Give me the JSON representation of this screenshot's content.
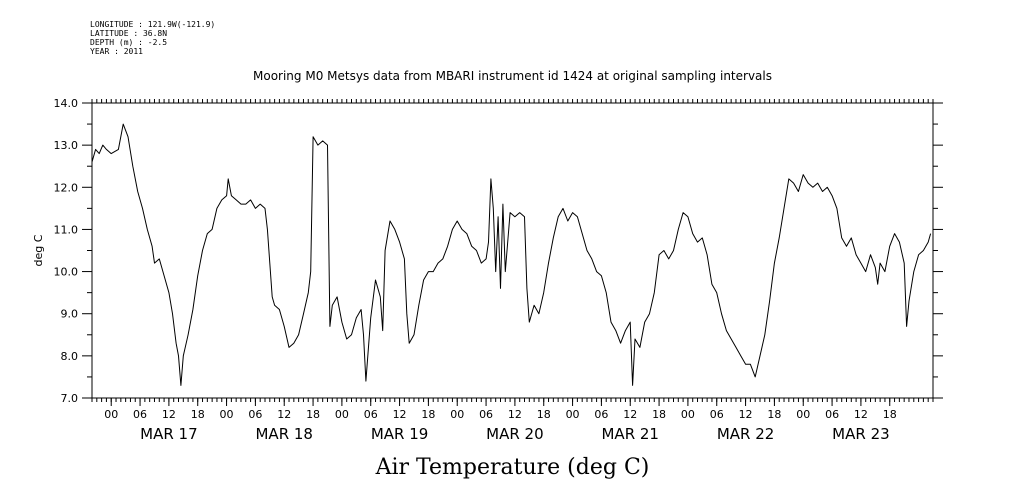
{
  "meta": {
    "longitude": "LONGITUDE : 121.9W(-121.9)",
    "latitude": "LATITUDE : 36.8N",
    "depth": "DEPTH (m) : -2.5",
    "year": "YEAR : 2011"
  },
  "chart_data": {
    "type": "line",
    "title": "Mooring M0 Metsys data from MBARI instrument id 1424 at original sampling intervals",
    "xlabel": "Air Temperature (deg C)",
    "ylabel": "deg C",
    "ylim": [
      7.0,
      14.0
    ],
    "yticks": [
      "7.0",
      "8.0",
      "9.0",
      "10.0",
      "11.0",
      "12.0",
      "13.0",
      "14.0"
    ],
    "xlim": [
      "2011-03-16T20:00",
      "2011-03-24T03:00"
    ],
    "hour_ticks": [
      "00",
      "06",
      "12",
      "18",
      "00",
      "06",
      "12",
      "18",
      "00",
      "06",
      "12",
      "18",
      "00",
      "06",
      "12",
      "18",
      "00",
      "06",
      "12",
      "18",
      "00",
      "06",
      "12",
      "18",
      "00",
      "06",
      "12",
      "18"
    ],
    "day_labels": [
      "MAR 17",
      "MAR 18",
      "MAR 19",
      "MAR 20",
      "MAR 21",
      "MAR 22",
      "MAR 23"
    ],
    "series": [
      {
        "values": [
          [
            "2011-03-16T20:00",
            12.6
          ],
          [
            "2011-03-16T20:45",
            12.9
          ],
          [
            "2011-03-16T21:30",
            12.8
          ],
          [
            "2011-03-16T22:15",
            13.0
          ],
          [
            "2011-03-16T23:00",
            12.9
          ],
          [
            "2011-03-17T00:00",
            12.8
          ],
          [
            "2011-03-17T01:30",
            12.9
          ],
          [
            "2011-03-17T02:30",
            13.5
          ],
          [
            "2011-03-17T03:30",
            13.2
          ],
          [
            "2011-03-17T04:30",
            12.5
          ],
          [
            "2011-03-17T05:30",
            11.9
          ],
          [
            "2011-03-17T06:30",
            11.5
          ],
          [
            "2011-03-17T07:30",
            11.0
          ],
          [
            "2011-03-17T08:30",
            10.6
          ],
          [
            "2011-03-17T09:00",
            10.2
          ],
          [
            "2011-03-17T10:00",
            10.3
          ],
          [
            "2011-03-17T11:00",
            9.9
          ],
          [
            "2011-03-17T12:00",
            9.5
          ],
          [
            "2011-03-17T12:45",
            9.0
          ],
          [
            "2011-03-17T13:30",
            8.3
          ],
          [
            "2011-03-17T14:00",
            8.0
          ],
          [
            "2011-03-17T14:30",
            7.3
          ],
          [
            "2011-03-17T15:00",
            8.0
          ],
          [
            "2011-03-17T16:00",
            8.5
          ],
          [
            "2011-03-17T17:00",
            9.1
          ],
          [
            "2011-03-17T18:00",
            9.9
          ],
          [
            "2011-03-17T19:00",
            10.5
          ],
          [
            "2011-03-17T20:00",
            10.9
          ],
          [
            "2011-03-17T21:00",
            11.0
          ],
          [
            "2011-03-17T22:00",
            11.5
          ],
          [
            "2011-03-17T23:00",
            11.7
          ],
          [
            "2011-03-18T00:00",
            11.8
          ],
          [
            "2011-03-18T00:20",
            12.2
          ],
          [
            "2011-03-18T01:00",
            11.8
          ],
          [
            "2011-03-18T02:00",
            11.7
          ],
          [
            "2011-03-18T03:00",
            11.6
          ],
          [
            "2011-03-18T04:00",
            11.6
          ],
          [
            "2011-03-18T05:00",
            11.7
          ],
          [
            "2011-03-18T06:00",
            11.5
          ],
          [
            "2011-03-18T07:00",
            11.6
          ],
          [
            "2011-03-18T08:00",
            11.5
          ],
          [
            "2011-03-18T08:30",
            11.0
          ],
          [
            "2011-03-18T09:00",
            10.2
          ],
          [
            "2011-03-18T09:30",
            9.4
          ],
          [
            "2011-03-18T10:00",
            9.2
          ],
          [
            "2011-03-18T11:00",
            9.1
          ],
          [
            "2011-03-18T12:00",
            8.7
          ],
          [
            "2011-03-18T13:00",
            8.2
          ],
          [
            "2011-03-18T14:00",
            8.3
          ],
          [
            "2011-03-18T15:00",
            8.5
          ],
          [
            "2011-03-18T16:00",
            9.0
          ],
          [
            "2011-03-18T17:00",
            9.5
          ],
          [
            "2011-03-18T17:30",
            10.0
          ],
          [
            "2011-03-18T18:00",
            13.2
          ],
          [
            "2011-03-18T19:00",
            13.0
          ],
          [
            "2011-03-18T20:00",
            13.1
          ],
          [
            "2011-03-18T21:00",
            13.0
          ],
          [
            "2011-03-18T21:30",
            8.7
          ],
          [
            "2011-03-18T22:00",
            9.2
          ],
          [
            "2011-03-18T23:00",
            9.4
          ],
          [
            "2011-03-19T00:00",
            8.8
          ],
          [
            "2011-03-19T01:00",
            8.4
          ],
          [
            "2011-03-19T02:00",
            8.5
          ],
          [
            "2011-03-19T03:00",
            8.9
          ],
          [
            "2011-03-19T04:00",
            9.1
          ],
          [
            "2011-03-19T04:30",
            8.5
          ],
          [
            "2011-03-19T05:00",
            7.4
          ],
          [
            "2011-03-19T06:00",
            8.9
          ],
          [
            "2011-03-19T07:00",
            9.8
          ],
          [
            "2011-03-19T08:00",
            9.4
          ],
          [
            "2011-03-19T08:30",
            8.6
          ],
          [
            "2011-03-19T09:00",
            10.5
          ],
          [
            "2011-03-19T10:00",
            11.2
          ],
          [
            "2011-03-19T11:00",
            11.0
          ],
          [
            "2011-03-19T12:00",
            10.7
          ],
          [
            "2011-03-19T13:00",
            10.3
          ],
          [
            "2011-03-19T13:30",
            9.0
          ],
          [
            "2011-03-19T14:00",
            8.3
          ],
          [
            "2011-03-19T15:00",
            8.5
          ],
          [
            "2011-03-19T16:00",
            9.2
          ],
          [
            "2011-03-19T17:00",
            9.8
          ],
          [
            "2011-03-19T18:00",
            10.0
          ],
          [
            "2011-03-19T19:00",
            10.0
          ],
          [
            "2011-03-19T20:00",
            10.2
          ],
          [
            "2011-03-19T21:00",
            10.3
          ],
          [
            "2011-03-19T22:00",
            10.6
          ],
          [
            "2011-03-19T23:00",
            11.0
          ],
          [
            "2011-03-20T00:00",
            11.2
          ],
          [
            "2011-03-20T01:00",
            11.0
          ],
          [
            "2011-03-20T02:00",
            10.9
          ],
          [
            "2011-03-20T03:00",
            10.6
          ],
          [
            "2011-03-20T04:00",
            10.5
          ],
          [
            "2011-03-20T05:00",
            10.2
          ],
          [
            "2011-03-20T06:00",
            10.3
          ],
          [
            "2011-03-20T06:30",
            10.7
          ],
          [
            "2011-03-20T07:00",
            12.2
          ],
          [
            "2011-03-20T07:30",
            11.5
          ],
          [
            "2011-03-20T08:00",
            10.0
          ],
          [
            "2011-03-20T08:30",
            11.3
          ],
          [
            "2011-03-20T09:00",
            9.6
          ],
          [
            "2011-03-20T09:30",
            11.6
          ],
          [
            "2011-03-20T10:00",
            10.0
          ],
          [
            "2011-03-20T11:00",
            11.4
          ],
          [
            "2011-03-20T12:00",
            11.3
          ],
          [
            "2011-03-20T13:00",
            11.4
          ],
          [
            "2011-03-20T14:00",
            11.3
          ],
          [
            "2011-03-20T14:30",
            9.6
          ],
          [
            "2011-03-20T15:00",
            8.8
          ],
          [
            "2011-03-20T16:00",
            9.2
          ],
          [
            "2011-03-20T17:00",
            9.0
          ],
          [
            "2011-03-20T18:00",
            9.5
          ],
          [
            "2011-03-20T19:00",
            10.2
          ],
          [
            "2011-03-20T20:00",
            10.8
          ],
          [
            "2011-03-20T21:00",
            11.3
          ],
          [
            "2011-03-20T22:00",
            11.5
          ],
          [
            "2011-03-20T23:00",
            11.2
          ],
          [
            "2011-03-21T00:00",
            11.4
          ],
          [
            "2011-03-21T01:00",
            11.3
          ],
          [
            "2011-03-21T02:00",
            10.9
          ],
          [
            "2011-03-21T03:00",
            10.5
          ],
          [
            "2011-03-21T04:00",
            10.3
          ],
          [
            "2011-03-21T05:00",
            10.0
          ],
          [
            "2011-03-21T06:00",
            9.9
          ],
          [
            "2011-03-21T07:00",
            9.5
          ],
          [
            "2011-03-21T08:00",
            8.8
          ],
          [
            "2011-03-21T09:00",
            8.6
          ],
          [
            "2011-03-21T10:00",
            8.3
          ],
          [
            "2011-03-21T11:00",
            8.6
          ],
          [
            "2011-03-21T12:00",
            8.8
          ],
          [
            "2011-03-21T12:30",
            7.3
          ],
          [
            "2011-03-21T13:00",
            8.4
          ],
          [
            "2011-03-21T14:00",
            8.2
          ],
          [
            "2011-03-21T15:00",
            8.8
          ],
          [
            "2011-03-21T16:00",
            9.0
          ],
          [
            "2011-03-21T17:00",
            9.5
          ],
          [
            "2011-03-21T18:00",
            10.4
          ],
          [
            "2011-03-21T19:00",
            10.5
          ],
          [
            "2011-03-21T20:00",
            10.3
          ],
          [
            "2011-03-21T21:00",
            10.5
          ],
          [
            "2011-03-21T22:00",
            11.0
          ],
          [
            "2011-03-21T23:00",
            11.4
          ],
          [
            "2011-03-22T00:00",
            11.3
          ],
          [
            "2011-03-22T01:00",
            10.9
          ],
          [
            "2011-03-22T02:00",
            10.7
          ],
          [
            "2011-03-22T03:00",
            10.8
          ],
          [
            "2011-03-22T04:00",
            10.4
          ],
          [
            "2011-03-22T05:00",
            9.7
          ],
          [
            "2011-03-22T06:00",
            9.5
          ],
          [
            "2011-03-22T07:00",
            9.0
          ],
          [
            "2011-03-22T08:00",
            8.6
          ],
          [
            "2011-03-22T09:00",
            8.4
          ],
          [
            "2011-03-22T10:00",
            8.2
          ],
          [
            "2011-03-22T11:00",
            8.0
          ],
          [
            "2011-03-22T12:00",
            7.8
          ],
          [
            "2011-03-22T13:00",
            7.8
          ],
          [
            "2011-03-22T14:00",
            7.5
          ],
          [
            "2011-03-22T15:00",
            8.0
          ],
          [
            "2011-03-22T16:00",
            8.5
          ],
          [
            "2011-03-22T17:00",
            9.3
          ],
          [
            "2011-03-22T18:00",
            10.2
          ],
          [
            "2011-03-22T19:00",
            10.8
          ],
          [
            "2011-03-22T20:00",
            11.5
          ],
          [
            "2011-03-22T21:00",
            12.2
          ],
          [
            "2011-03-22T22:00",
            12.1
          ],
          [
            "2011-03-22T23:00",
            11.9
          ],
          [
            "2011-03-23T00:00",
            12.3
          ],
          [
            "2011-03-23T01:00",
            12.1
          ],
          [
            "2011-03-23T02:00",
            12.0
          ],
          [
            "2011-03-23T03:00",
            12.1
          ],
          [
            "2011-03-23T04:00",
            11.9
          ],
          [
            "2011-03-23T05:00",
            12.0
          ],
          [
            "2011-03-23T06:00",
            11.8
          ],
          [
            "2011-03-23T07:00",
            11.5
          ],
          [
            "2011-03-23T08:00",
            10.8
          ],
          [
            "2011-03-23T09:00",
            10.6
          ],
          [
            "2011-03-23T10:00",
            10.8
          ],
          [
            "2011-03-23T11:00",
            10.4
          ],
          [
            "2011-03-23T12:00",
            10.2
          ],
          [
            "2011-03-23T13:00",
            10.0
          ],
          [
            "2011-03-23T14:00",
            10.4
          ],
          [
            "2011-03-23T15:00",
            10.1
          ],
          [
            "2011-03-23T15:30",
            9.7
          ],
          [
            "2011-03-23T16:00",
            10.2
          ],
          [
            "2011-03-23T17:00",
            10.0
          ],
          [
            "2011-03-23T18:00",
            10.6
          ],
          [
            "2011-03-23T19:00",
            10.9
          ],
          [
            "2011-03-23T20:00",
            10.7
          ],
          [
            "2011-03-23T21:00",
            10.2
          ],
          [
            "2011-03-23T21:30",
            8.7
          ],
          [
            "2011-03-23T22:00",
            9.3
          ],
          [
            "2011-03-23T23:00",
            10.0
          ],
          [
            "2011-03-24T00:00",
            10.4
          ],
          [
            "2011-03-24T01:00",
            10.5
          ],
          [
            "2011-03-24T02:00",
            10.7
          ],
          [
            "2011-03-24T02:30",
            10.9
          ]
        ]
      }
    ]
  }
}
